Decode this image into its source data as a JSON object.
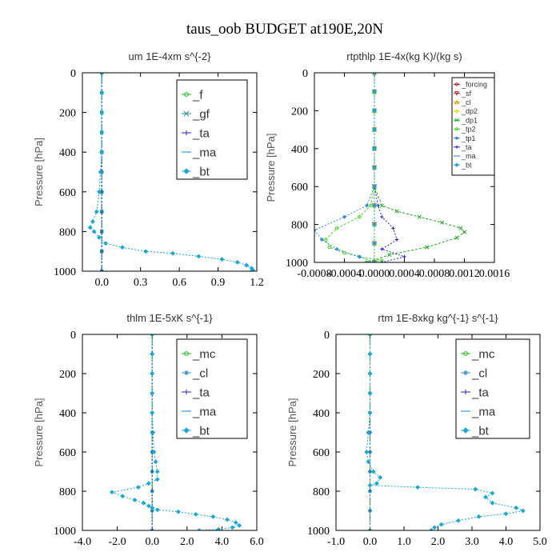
{
  "figure_title": "taus_oob  BUDGET at190E,20N",
  "chart_data": [
    {
      "type": "line",
      "title": "um   1E-4xm s^{-2}",
      "ylabel": "Pressure [hPa]",
      "xlim": [
        -0.15,
        1.2
      ],
      "ylim": [
        1000,
        0
      ],
      "xticks": [
        "0.0",
        "0.3",
        "0.6",
        "0.9",
        "1.2"
      ],
      "xtick_values": [
        0.0,
        0.3,
        0.6,
        0.9,
        1.2
      ],
      "yticks": [
        "0",
        "200",
        "400",
        "600",
        "800",
        "1000"
      ],
      "legend_position": "top-right",
      "series": [
        {
          "name": "_f",
          "color": "#22bb22",
          "marker": "circle",
          "x": [
            0,
            0,
            0,
            0,
            0,
            0,
            0,
            0,
            0,
            0,
            0
          ],
          "y": [
            0,
            100,
            200,
            300,
            400,
            500,
            600,
            700,
            800,
            900,
            1000
          ]
        },
        {
          "name": "_gf",
          "color": "#2f8f8f",
          "marker": "x",
          "x": [
            0,
            0,
            0,
            0,
            0,
            0,
            0,
            0,
            0,
            0,
            0
          ],
          "y": [
            0,
            100,
            200,
            300,
            400,
            500,
            600,
            700,
            800,
            900,
            1000
          ]
        },
        {
          "name": "_ta",
          "color": "#2222cc",
          "marker": "plus",
          "x": [
            0,
            0,
            0,
            0,
            0,
            0,
            0,
            0,
            0,
            0,
            0
          ],
          "y": [
            0,
            100,
            200,
            300,
            400,
            500,
            600,
            700,
            800,
            900,
            1000
          ]
        },
        {
          "name": "_ma",
          "color": "#1c7fd1",
          "marker": "dash",
          "x": [
            0,
            0,
            0,
            0,
            0,
            0,
            0,
            0,
            0,
            0,
            0
          ],
          "y": [
            0,
            100,
            200,
            300,
            400,
            500,
            600,
            700,
            800,
            900,
            1000
          ]
        },
        {
          "name": "_bt",
          "color": "#15a8dd",
          "marker": "diamond",
          "x": [
            0,
            0,
            0,
            0,
            0,
            -0.01,
            -0.02,
            -0.04,
            -0.07,
            -0.09,
            -0.06,
            -0.02,
            0.03,
            0.16,
            0.34,
            0.55,
            0.75,
            0.93,
            1.05,
            1.12,
            1.16,
            1.17,
            1.16
          ],
          "y": [
            0,
            100,
            200,
            300,
            400,
            500,
            600,
            700,
            750,
            780,
            800,
            830,
            860,
            880,
            900,
            910,
            925,
            940,
            955,
            970,
            985,
            995,
            1000
          ]
        }
      ]
    },
    {
      "type": "line",
      "title": "rtpthlp   1E-4x(kg K)/(kg s)",
      "ylabel": "Pressure [hPa]",
      "xlim": [
        -0.0008,
        0.0016
      ],
      "ylim": [
        1000,
        0
      ],
      "xticks": [
        "-0.0008",
        "-0.0004",
        "0.0000",
        "0.0004",
        "0.0008",
        "0.0012",
        "0.0016"
      ],
      "xtick_values": [
        -0.0008,
        -0.0004,
        0.0,
        0.0004,
        0.0008,
        0.0012,
        0.0016
      ],
      "yticks": [
        "0",
        "200",
        "400",
        "600",
        "800",
        "1000"
      ],
      "legend_position": "top-right",
      "series": [
        {
          "name": "_forcing",
          "color": "#cc2222",
          "marker": "circle",
          "x": [
            0,
            0,
            0,
            0,
            0,
            0,
            0,
            0,
            0,
            0,
            0
          ],
          "y": [
            0,
            100,
            200,
            300,
            400,
            500,
            600,
            700,
            800,
            900,
            1000
          ]
        },
        {
          "name": "_sf",
          "color": "#cc2222",
          "marker": "tri-down",
          "x": [
            0,
            0,
            0,
            0,
            0,
            0,
            0,
            0,
            0,
            0,
            0
          ],
          "y": [
            0,
            100,
            200,
            300,
            400,
            500,
            600,
            700,
            800,
            900,
            1000
          ]
        },
        {
          "name": "_cl",
          "color": "#dd9900",
          "marker": "tri-up",
          "x": [
            0,
            0,
            0,
            0,
            0,
            0,
            0,
            0,
            0,
            0,
            0
          ],
          "y": [
            0,
            100,
            200,
            300,
            400,
            500,
            600,
            700,
            800,
            900,
            1000
          ]
        },
        {
          "name": "_dp2",
          "color": "#dddd00",
          "marker": "circle",
          "x": [
            0,
            0,
            0,
            0,
            0,
            0,
            0,
            0,
            0,
            0,
            0
          ],
          "y": [
            0,
            100,
            200,
            300,
            400,
            500,
            600,
            700,
            800,
            900,
            1000
          ]
        },
        {
          "name": "_dp1",
          "color": "#22aa22",
          "marker": "x",
          "x": [
            0,
            0,
            0,
            0,
            0,
            0,
            0,
            0.0001,
            0.0003,
            0.0006,
            0.0009,
            0.00115,
            0.0012,
            0.0011,
            0.0007,
            0.0002,
            -0.0001
          ],
          "y": [
            0,
            100,
            200,
            300,
            400,
            500,
            600,
            700,
            730,
            760,
            790,
            820,
            840,
            870,
            920,
            960,
            1000
          ]
        },
        {
          "name": "_tp2",
          "color": "#44dd22",
          "marker": "circle",
          "x": [
            0,
            0,
            0,
            0,
            0,
            0,
            0,
            -5e-05,
            -0.0002,
            -0.0005,
            -0.00065,
            -0.0006,
            -0.0004,
            -0.0002,
            0.0001,
            -0.0001
          ],
          "y": [
            0,
            100,
            200,
            300,
            400,
            500,
            600,
            700,
            760,
            820,
            880,
            920,
            950,
            970,
            990,
            1000
          ]
        },
        {
          "name": "_tp1",
          "color": "#3388ee",
          "marker": "asterisk",
          "x": [
            0,
            0,
            0,
            0,
            0,
            0,
            0,
            -0.0001,
            -0.0004,
            -0.0008,
            -0.0007,
            -0.0005,
            -0.0002,
            0
          ],
          "y": [
            0,
            100,
            200,
            300,
            400,
            500,
            600,
            700,
            760,
            830,
            880,
            930,
            970,
            1000
          ]
        },
        {
          "name": "_ta",
          "color": "#2222cc",
          "marker": "plus",
          "x": [
            0,
            0,
            0,
            0,
            0,
            0,
            0,
            5e-05,
            0.0001,
            0.00025,
            0.0003,
            0.0001,
            0.0004,
            0.0001
          ],
          "y": [
            0,
            100,
            200,
            300,
            400,
            500,
            600,
            700,
            760,
            820,
            880,
            930,
            970,
            1000
          ]
        },
        {
          "name": "_ma",
          "color": "#1c7fd1",
          "marker": "dash",
          "x": [
            0,
            0,
            0,
            0,
            0,
            0,
            0,
            0,
            0,
            0,
            0
          ],
          "y": [
            0,
            100,
            200,
            300,
            400,
            500,
            600,
            700,
            800,
            900,
            1000
          ]
        },
        {
          "name": "_bt",
          "color": "#15a8dd",
          "marker": "diamond",
          "x": [
            0,
            0,
            0,
            0,
            0,
            0,
            0,
            0,
            0,
            0,
            0
          ],
          "y": [
            0,
            100,
            200,
            300,
            400,
            500,
            600,
            700,
            800,
            900,
            1000
          ]
        }
      ]
    },
    {
      "type": "line",
      "title": "thlm   1E-5xK s^{-1}",
      "ylabel": "Pressure [hPa]",
      "xlim": [
        -4.0,
        6.0
      ],
      "ylim": [
        1000,
        0
      ],
      "xticks": [
        "-4.0",
        "-2.0",
        "0.0",
        "2.0",
        "4.0",
        "6.0"
      ],
      "xtick_values": [
        -4.0,
        -2.0,
        0.0,
        2.0,
        4.0,
        6.0
      ],
      "yticks": [
        "0",
        "200",
        "400",
        "600",
        "800",
        "1000"
      ],
      "legend_position": "top-right",
      "series": [
        {
          "name": "_mc",
          "color": "#22bb22",
          "marker": "circle",
          "x": [
            0,
            0,
            0,
            0,
            0,
            0,
            0,
            0,
            0,
            0,
            0
          ],
          "y": [
            0,
            100,
            200,
            300,
            400,
            500,
            600,
            700,
            800,
            900,
            1000
          ]
        },
        {
          "name": "_cl",
          "color": "#2f8fd1",
          "marker": "asterisk",
          "x": [
            0,
            0,
            0,
            0,
            0,
            0,
            0,
            0,
            0,
            0,
            0
          ],
          "y": [
            0,
            100,
            200,
            300,
            400,
            500,
            600,
            700,
            800,
            900,
            1000
          ]
        },
        {
          "name": "_ta",
          "color": "#2222cc",
          "marker": "plus",
          "x": [
            0,
            0,
            0,
            0,
            0,
            0,
            0,
            0,
            0,
            0,
            0
          ],
          "y": [
            0,
            100,
            200,
            300,
            400,
            500,
            600,
            700,
            800,
            900,
            1000
          ]
        },
        {
          "name": "_ma",
          "color": "#1c7fd1",
          "marker": "dash",
          "x": [
            0,
            0,
            0,
            0,
            0,
            0,
            0,
            0,
            0,
            0,
            0
          ],
          "y": [
            0,
            100,
            200,
            300,
            400,
            500,
            600,
            700,
            800,
            900,
            1000
          ]
        },
        {
          "name": "_bt",
          "color": "#15a8dd",
          "marker": "diamond",
          "x": [
            0,
            0,
            0,
            0,
            0,
            0.05,
            0.1,
            0.2,
            0.3,
            0.3,
            -0.2,
            -0.8,
            -2.3,
            -1.7,
            -1.0,
            -0.5,
            -0.2,
            0.0,
            0.3,
            1.5,
            2.5,
            3.5,
            4.3,
            4.8,
            5.0,
            4.6,
            3.8,
            2.7
          ],
          "y": [
            0,
            100,
            200,
            300,
            400,
            500,
            600,
            650,
            700,
            740,
            760,
            780,
            805,
            825,
            845,
            860,
            875,
            885,
            895,
            905,
            918,
            930,
            945,
            960,
            975,
            985,
            995,
            1000
          ]
        }
      ]
    },
    {
      "type": "line",
      "title": "rtm   1E-8xkg kg^{-1} s^{-1}",
      "ylabel": "Pressure [hPa]",
      "xlim": [
        -1.0,
        5.0
      ],
      "ylim": [
        1000,
        0
      ],
      "xticks": [
        "-1.0",
        "0.0",
        "1.0",
        "2.0",
        "3.0",
        "4.0",
        "5.0"
      ],
      "xtick_values": [
        -1.0,
        0.0,
        1.0,
        2.0,
        3.0,
        4.0,
        5.0
      ],
      "yticks": [
        "0",
        "200",
        "400",
        "600",
        "800",
        "1000"
      ],
      "legend_position": "top-right",
      "series": [
        {
          "name": "_mc",
          "color": "#22bb22",
          "marker": "circle",
          "x": [
            0,
            0,
            0,
            0,
            0,
            0,
            0,
            0,
            0,
            0,
            0
          ],
          "y": [
            0,
            100,
            200,
            300,
            400,
            500,
            600,
            700,
            800,
            900,
            1000
          ]
        },
        {
          "name": "_cl",
          "color": "#2f8fd1",
          "marker": "asterisk",
          "x": [
            0,
            0,
            0,
            0,
            0,
            0,
            0,
            0,
            0,
            0,
            0
          ],
          "y": [
            0,
            100,
            200,
            300,
            400,
            500,
            600,
            700,
            800,
            900,
            1000
          ]
        },
        {
          "name": "_ta",
          "color": "#2222cc",
          "marker": "plus",
          "x": [
            0,
            0,
            0,
            0,
            0,
            0,
            0,
            0,
            0,
            0,
            0
          ],
          "y": [
            0,
            100,
            200,
            300,
            400,
            500,
            600,
            700,
            800,
            900,
            1000
          ]
        },
        {
          "name": "_ma",
          "color": "#1c7fd1",
          "marker": "dash",
          "x": [
            0,
            0,
            0,
            0,
            0,
            0,
            0,
            0,
            0,
            0,
            0
          ],
          "y": [
            0,
            100,
            200,
            300,
            400,
            500,
            600,
            700,
            800,
            900,
            1000
          ]
        },
        {
          "name": "_bt",
          "color": "#15a8dd",
          "marker": "diamond",
          "x": [
            0,
            0,
            0,
            0,
            0,
            -0.05,
            -0.1,
            -0.05,
            0.1,
            0.3,
            0.2,
            0.0,
            1.4,
            3.1,
            3.6,
            3.4,
            3.6,
            4.3,
            4.5,
            4.0,
            3.2,
            2.6,
            2.1,
            1.9,
            1.8
          ],
          "y": [
            0,
            100,
            200,
            300,
            400,
            500,
            600,
            650,
            700,
            730,
            760,
            770,
            780,
            790,
            810,
            830,
            860,
            885,
            900,
            915,
            930,
            950,
            970,
            985,
            1000
          ]
        }
      ]
    }
  ]
}
